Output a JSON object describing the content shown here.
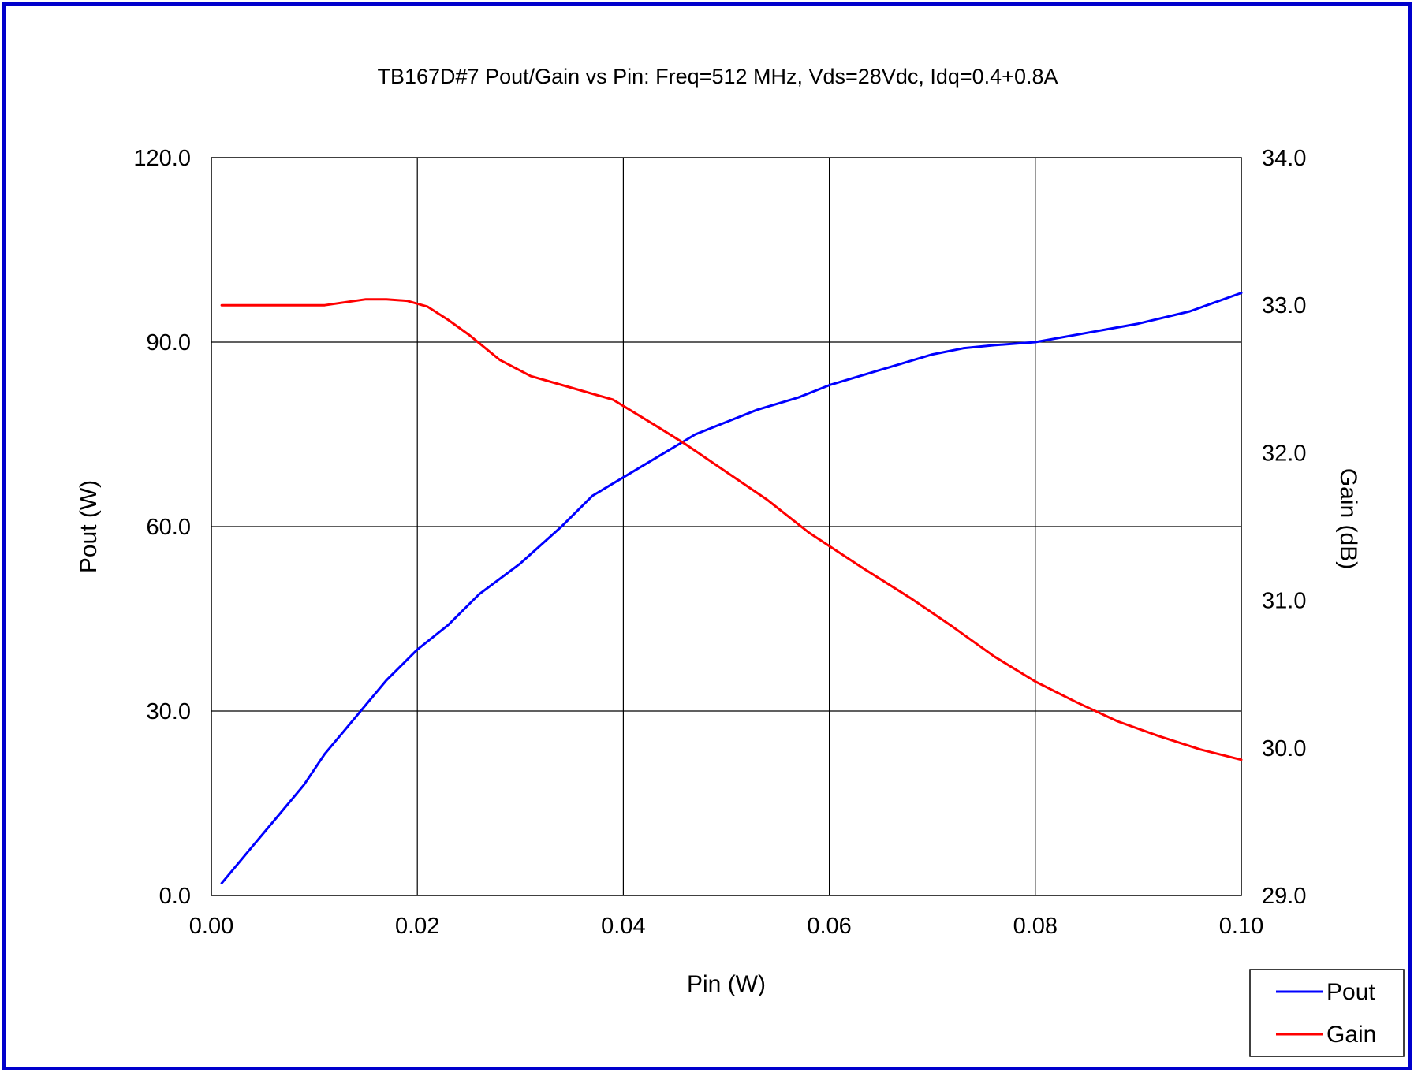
{
  "chart_data": {
    "type": "line",
    "title": "TB167D#7 Pout/Gain vs Pin: Freq=512 MHz, Vds=28Vdc, Idq=0.4+0.8A",
    "xlabel": "Pin (W)",
    "ylabel": "Pout (W)",
    "y2label": "Gain (dB)",
    "xlim": [
      0,
      0.1
    ],
    "ylim": [
      0,
      120
    ],
    "y2lim": [
      29,
      34
    ],
    "x_ticks": [
      "0.00",
      "0.02",
      "0.04",
      "0.06",
      "0.08",
      "0.10"
    ],
    "y_ticks": [
      "0.0",
      "30.0",
      "60.0",
      "90.0",
      "120.0"
    ],
    "y2_ticks": [
      "29.0",
      "30.0",
      "31.0",
      "32.0",
      "33.0",
      "34.0"
    ],
    "grid": true,
    "legend_position": "bottom-right",
    "series": [
      {
        "name": "Pout",
        "axis": "left",
        "color": "#0000ff",
        "x": [
          0.001,
          0.003,
          0.004,
          0.006,
          0.008,
          0.009,
          0.011,
          0.013,
          0.015,
          0.017,
          0.02,
          0.023,
          0.026,
          0.03,
          0.034,
          0.037,
          0.04,
          0.043,
          0.047,
          0.05,
          0.053,
          0.057,
          0.06,
          0.065,
          0.07,
          0.073,
          0.076,
          0.08,
          0.085,
          0.09,
          0.095,
          0.1
        ],
        "values": [
          2,
          6,
          8,
          12,
          16,
          18,
          23,
          27,
          31,
          35,
          40,
          44,
          49,
          54,
          60,
          65,
          68,
          71,
          75,
          77,
          79,
          81,
          83,
          85.5,
          88,
          89,
          89.5,
          90,
          91.5,
          93,
          95,
          98
        ]
      },
      {
        "name": "Gain",
        "axis": "right",
        "color": "#ff0000",
        "x": [
          0.001,
          0.005,
          0.011,
          0.015,
          0.017,
          0.019,
          0.021,
          0.023,
          0.025,
          0.028,
          0.031,
          0.035,
          0.039,
          0.043,
          0.046,
          0.05,
          0.054,
          0.058,
          0.063,
          0.068,
          0.072,
          0.076,
          0.08,
          0.084,
          0.088,
          0.092,
          0.096,
          0.1
        ],
        "values": [
          33.0,
          33.0,
          33.0,
          33.04,
          33.04,
          33.03,
          32.99,
          32.9,
          32.8,
          32.63,
          32.52,
          32.44,
          32.36,
          32.19,
          32.06,
          31.87,
          31.68,
          31.46,
          31.23,
          31.01,
          30.82,
          30.62,
          30.45,
          30.31,
          30.18,
          30.08,
          29.99,
          29.92
        ]
      }
    ]
  }
}
